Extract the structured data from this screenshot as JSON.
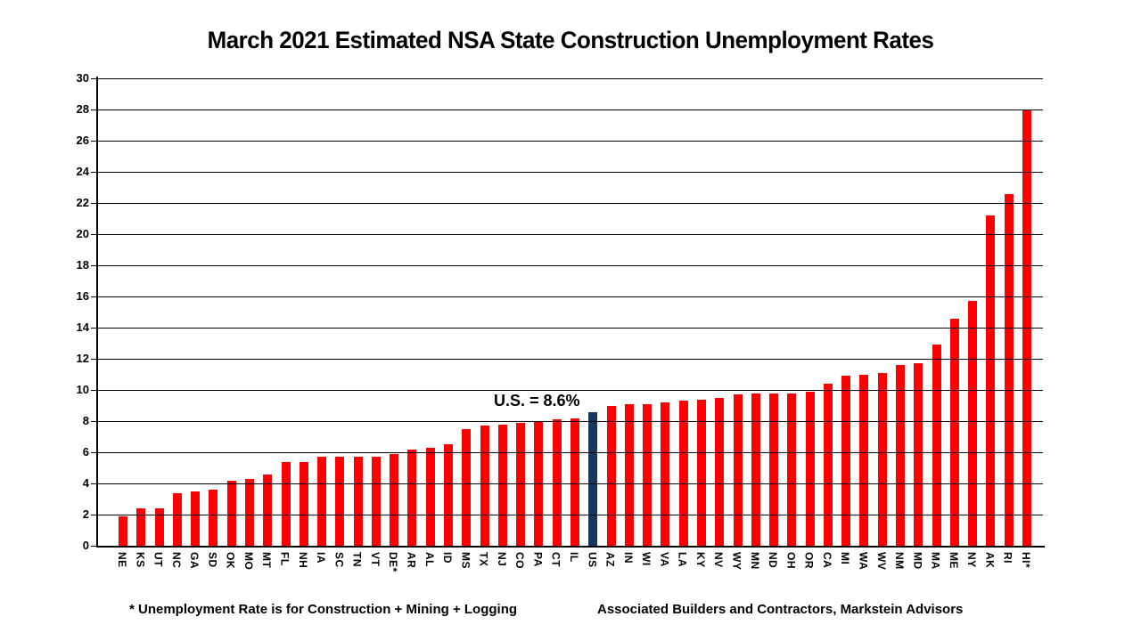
{
  "title": "March 2021 Estimated NSA State Construction Unemployment Rates",
  "annotation": {
    "us_label": "U.S. = 8.6%"
  },
  "footer": {
    "note": "* Unemployment Rate is for Construction + Mining + Logging",
    "source": "Associated Builders and Contractors, Markstein Advisors"
  },
  "chart_data": {
    "type": "bar",
    "title": "March 2021 Estimated NSA State Construction Unemployment Rates",
    "categories": [
      "NE",
      "KS",
      "UT",
      "NC",
      "GA",
      "SD",
      "OK",
      "MO",
      "MT",
      "FL",
      "NH",
      "IA",
      "SC",
      "TN",
      "VT",
      "DE*",
      "AR",
      "AL",
      "ID",
      "MS",
      "TX",
      "NJ",
      "CO",
      "PA",
      "CT",
      "IL",
      "US",
      "AZ",
      "IN",
      "WI",
      "VA",
      "LA",
      "KY",
      "NV",
      "WY",
      "MN",
      "ND",
      "OH",
      "OR",
      "CA",
      "MI",
      "WA",
      "WV",
      "NM",
      "MD",
      "MA",
      "ME",
      "NY",
      "AK",
      "RI",
      "HI*"
    ],
    "values": [
      1.9,
      2.4,
      2.4,
      3.4,
      3.5,
      3.6,
      4.2,
      4.3,
      4.6,
      5.4,
      5.4,
      5.7,
      5.7,
      5.7,
      5.7,
      5.9,
      6.2,
      6.3,
      6.5,
      7.5,
      7.7,
      7.8,
      7.9,
      8.0,
      8.1,
      8.2,
      8.6,
      9.0,
      9.1,
      9.1,
      9.2,
      9.3,
      9.4,
      9.5,
      9.7,
      9.8,
      9.8,
      9.8,
      9.9,
      10.4,
      10.9,
      11.0,
      11.1,
      11.6,
      11.7,
      12.9,
      14.6,
      15.7,
      21.2,
      22.6,
      28.0
    ],
    "xlabel": "",
    "ylabel": "",
    "ylim": [
      0,
      30
    ],
    "ytick_step": 2,
    "grid": true,
    "gridlines_over_bars": true,
    "legend": "none",
    "bar_color": "#FF0000",
    "highlight_category": "US",
    "highlight_color": "#17375E",
    "annotation": "U.S. = 8.6%"
  }
}
